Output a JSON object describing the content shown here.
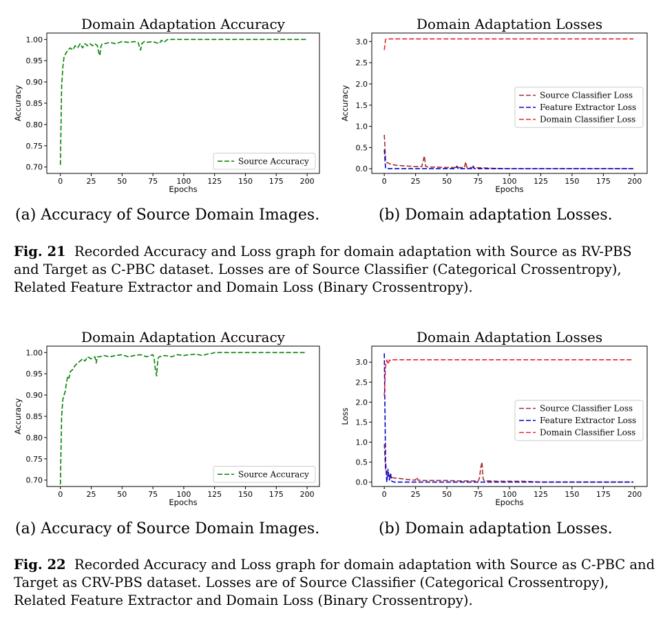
{
  "figures": [
    {
      "label": "Fig. 21",
      "caption": "Recorded Accuracy and Loss graph for domain adaptation with Source as RV-PBS and Target as C-PBC dataset. Losses are of Source Classifier (Categorical Crossentropy), Related Feature Extractor and Domain Loss (Binary Crossentropy).",
      "sub_a": "(a) Accuracy of Source Domain Images.",
      "sub_b": "(b) Domain adaptation Losses."
    },
    {
      "label": "Fig. 22",
      "caption": "Recorded Accuracy and Loss graph for domain adaptation with Source as C-PBC and Target as CRV-PBS dataset. Losses are of Source Classifier (Categorical Crossentropy), Related Feature Extractor and Domain Loss (Binary Crossentropy).",
      "sub_a": "(a) Accuracy of Source Domain Images.",
      "sub_b": "(b) Domain adaptation Losses."
    }
  ],
  "chart_data": [
    {
      "type": "line",
      "title": "Domain Adaptation Accuracy",
      "xlabel": "Epochs",
      "ylabel": "Accuracy",
      "xlim": [
        -11,
        210
      ],
      "ylim": [
        0.685,
        1.015
      ],
      "xticks": [
        "0",
        "25",
        "50",
        "75",
        "100",
        "125",
        "150",
        "175",
        "200"
      ],
      "yticks": [
        "0.70",
        "0.75",
        "0.80",
        "0.85",
        "0.90",
        "0.95",
        "1.00"
      ],
      "legend_position": "lower-right",
      "grid": false,
      "series": [
        {
          "name": "Source Accuracy",
          "color": "#008000",
          "x": [
            0,
            1,
            2,
            3,
            4,
            5,
            6,
            8,
            10,
            12,
            14,
            16,
            18,
            20,
            22,
            24,
            26,
            28,
            30,
            31,
            32,
            33,
            34,
            36,
            40,
            45,
            50,
            55,
            60,
            63,
            65,
            66,
            68,
            70,
            75,
            80,
            82,
            84,
            86,
            87,
            100,
            150,
            199
          ],
          "y": [
            0.705,
            0.89,
            0.935,
            0.96,
            0.965,
            0.97,
            0.975,
            0.98,
            0.975,
            0.985,
            0.98,
            0.99,
            0.98,
            0.99,
            0.985,
            0.99,
            0.985,
            0.99,
            0.985,
            0.97,
            0.962,
            0.985,
            0.99,
            0.99,
            0.993,
            0.99,
            0.995,
            0.993,
            0.995,
            0.993,
            0.975,
            0.99,
            0.995,
            0.993,
            0.995,
            0.99,
            0.998,
            0.993,
            0.998,
            1.0,
            1.0,
            1.0,
            1.0
          ]
        }
      ]
    },
    {
      "type": "line",
      "title": "Domain Adaptation Losses",
      "xlabel": "Epochs",
      "ylabel": "Accuracy",
      "xlim": [
        -10,
        210
      ],
      "ylim": [
        -0.11,
        3.2
      ],
      "xticks": [
        "0",
        "25",
        "50",
        "75",
        "100",
        "125",
        "150",
        "175",
        "200"
      ],
      "yticks": [
        "0.0",
        "0.5",
        "1.0",
        "1.5",
        "2.0",
        "2.5",
        "3.0"
      ],
      "legend_position": "center-right",
      "grid": false,
      "series": [
        {
          "name": "Source Classifier Loss",
          "color": "#a52a2a",
          "x": [
            0,
            1,
            2,
            4,
            6,
            10,
            15,
            20,
            25,
            30,
            31,
            32,
            33,
            35,
            40,
            50,
            60,
            64,
            65,
            66,
            70,
            80,
            86,
            100,
            150,
            199
          ],
          "y": [
            0.8,
            0.22,
            0.15,
            0.12,
            0.1,
            0.08,
            0.07,
            0.06,
            0.05,
            0.05,
            0.18,
            0.3,
            0.06,
            0.04,
            0.04,
            0.03,
            0.03,
            0.03,
            0.16,
            0.03,
            0.03,
            0.02,
            0.01,
            0.0,
            0.0,
            0.0
          ]
        },
        {
          "name": "Feature Extractor Loss",
          "color": "#0000cd",
          "x": [
            0,
            1,
            2,
            10,
            30,
            57,
            58,
            59,
            70,
            71,
            72,
            100,
            150,
            199
          ],
          "y": [
            0.45,
            0.02,
            0.0,
            0.0,
            0.0,
            0.0,
            0.06,
            0.0,
            0.0,
            0.06,
            0.0,
            0.0,
            0.0,
            0.0
          ]
        },
        {
          "name": "Domain Classifier Loss",
          "color": "#e8202a",
          "x": [
            0,
            1,
            2,
            199
          ],
          "y": [
            2.8,
            3.05,
            3.06,
            3.06
          ]
        }
      ]
    },
    {
      "type": "line",
      "title": "Domain Adaptation Accuracy",
      "xlabel": "Epochs",
      "ylabel": "Accuracy",
      "xlim": [
        -11,
        210
      ],
      "ylim": [
        0.685,
        1.015
      ],
      "xticks": [
        "0",
        "25",
        "50",
        "75",
        "100",
        "125",
        "150",
        "175",
        "200"
      ],
      "yticks": [
        "0.70",
        "0.75",
        "0.80",
        "0.85",
        "0.90",
        "0.95",
        "1.00"
      ],
      "legend_position": "lower-right",
      "grid": false,
      "series": [
        {
          "name": "Source Accuracy",
          "color": "#008000",
          "x": [
            0,
            1,
            2,
            3,
            4,
            5,
            6,
            7,
            8,
            10,
            12,
            14,
            16,
            18,
            20,
            22,
            25,
            28,
            29,
            30,
            32,
            35,
            40,
            45,
            50,
            55,
            60,
            65,
            70,
            75,
            76,
            77,
            78,
            79,
            80,
            85,
            90,
            95,
            100,
            105,
            110,
            115,
            120,
            123,
            125,
            150,
            199
          ],
          "y": [
            0.69,
            0.85,
            0.89,
            0.9,
            0.91,
            0.93,
            0.945,
            0.94,
            0.955,
            0.96,
            0.97,
            0.975,
            0.98,
            0.985,
            0.98,
            0.99,
            0.985,
            0.99,
            0.975,
            0.99,
            0.99,
            0.993,
            0.99,
            0.993,
            0.995,
            0.99,
            0.993,
            0.995,
            0.99,
            0.995,
            0.985,
            0.96,
            0.945,
            0.985,
            0.99,
            0.993,
            0.99,
            0.995,
            0.993,
            0.995,
            0.996,
            0.993,
            0.997,
            0.998,
            1.0,
            1.0,
            1.0
          ]
        }
      ]
    },
    {
      "type": "line",
      "title": "Domain Adaptation Losses",
      "xlabel": "Epochs",
      "ylabel": "Loss",
      "xlim": [
        -10,
        210
      ],
      "ylim": [
        -0.11,
        3.4
      ],
      "xticks": [
        "0",
        "25",
        "50",
        "75",
        "100",
        "125",
        "150",
        "175",
        "200"
      ],
      "yticks": [
        "0.0",
        "0.5",
        "1.0",
        "1.5",
        "2.0",
        "2.5",
        "3.0"
      ],
      "legend_position": "center-right",
      "grid": false,
      "series": [
        {
          "name": "Source Classifier Loss",
          "color": "#a52a2a",
          "x": [
            0,
            1,
            2,
            3,
            4,
            5,
            6,
            8,
            10,
            15,
            20,
            25,
            26,
            27,
            30,
            40,
            50,
            60,
            70,
            75,
            76,
            77,
            78,
            79,
            80,
            85,
            90,
            100,
            110,
            120,
            125,
            150,
            199
          ],
          "y": [
            0.95,
            0.3,
            0.22,
            0.15,
            0.12,
            0.2,
            0.12,
            0.1,
            0.1,
            0.08,
            0.06,
            0.05,
            0.12,
            0.05,
            0.04,
            0.04,
            0.04,
            0.03,
            0.03,
            0.03,
            0.1,
            0.35,
            0.5,
            0.08,
            0.03,
            0.03,
            0.02,
            0.02,
            0.02,
            0.01,
            0.0,
            0.0,
            0.0
          ]
        },
        {
          "name": "Feature Extractor Loss",
          "color": "#0000cd",
          "x": [
            0,
            1,
            2,
            3,
            4,
            5,
            6,
            8,
            10,
            20,
            25,
            50,
            100,
            150,
            199
          ],
          "y": [
            3.22,
            0.55,
            0.0,
            0.32,
            0.05,
            0.2,
            0.02,
            0.0,
            0.0,
            0.0,
            0.0,
            0.0,
            0.0,
            0.0,
            0.0
          ]
        },
        {
          "name": "Domain Classifier Loss",
          "color": "#e8202a",
          "x": [
            0,
            1,
            2,
            3,
            4,
            5,
            6,
            199
          ],
          "y": [
            2.15,
            2.9,
            3.05,
            2.95,
            3.05,
            3.04,
            3.06,
            3.06
          ]
        }
      ]
    }
  ]
}
